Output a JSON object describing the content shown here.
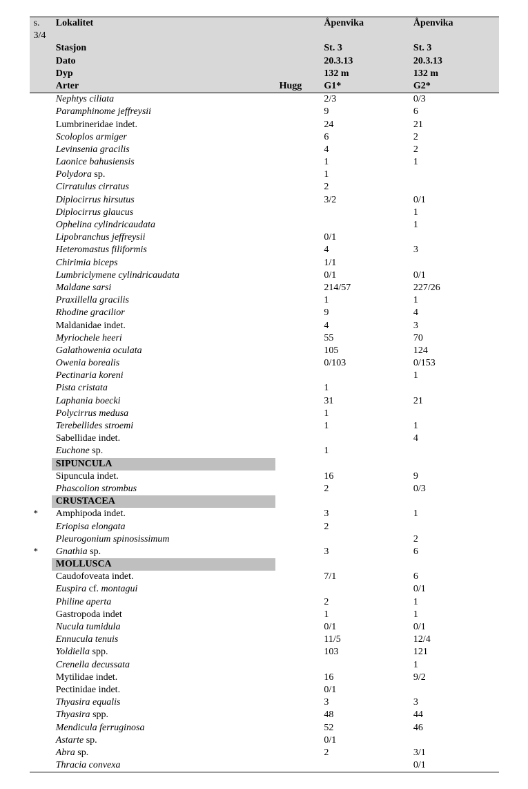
{
  "header": {
    "page_indicator": "s. 3/4",
    "labels": {
      "lokalitet": "Lokalitet",
      "stasjon": "Stasjon",
      "dato": "Dato",
      "dyp": "Dyp",
      "arter": "Arter",
      "hugg": "Hugg"
    },
    "cols": [
      {
        "lokalitet": "Åpenvika",
        "stasjon": "St. 3",
        "dato": "20.3.13",
        "dyp": "132 m",
        "hugg": "G1*"
      },
      {
        "lokalitet": "Åpenvika",
        "stasjon": "St. 3",
        "dato": "20.3.13",
        "dyp": "132 m",
        "hugg": "G2*"
      }
    ]
  },
  "rows": [
    {
      "mark": "",
      "type": "species",
      "name_italic": "Nephtys ciliata",
      "g1": "2/3",
      "g2": "0/3"
    },
    {
      "mark": "",
      "type": "species",
      "name_italic": "Paramphinome jeffreysii",
      "g1": "9",
      "g2": "6"
    },
    {
      "mark": "",
      "type": "species",
      "name_plain": "Lumbrineridae indet.",
      "g1": "24",
      "g2": "21"
    },
    {
      "mark": "",
      "type": "species",
      "name_italic": "Scoloplos armiger",
      "g1": "6",
      "g2": "2"
    },
    {
      "mark": "",
      "type": "species",
      "name_italic": "Levinsenia gracilis",
      "g1": "4",
      "g2": "2"
    },
    {
      "mark": "",
      "type": "species",
      "name_italic": "Laonice bahusiensis",
      "g1": "1",
      "g2": "1"
    },
    {
      "mark": "",
      "type": "species",
      "name_italic": "Polydora",
      "name_suffix": " sp.",
      "g1": "1",
      "g2": ""
    },
    {
      "mark": "",
      "type": "species",
      "name_italic": "Cirratulus cirratus",
      "g1": "2",
      "g2": ""
    },
    {
      "mark": "",
      "type": "species",
      "name_italic": "Diplocirrus hirsutus",
      "g1": "3/2",
      "g2": "0/1"
    },
    {
      "mark": "",
      "type": "species",
      "name_italic": "Diplocirrus glaucus",
      "g1": "",
      "g2": "1"
    },
    {
      "mark": "",
      "type": "species",
      "name_italic": "Ophelina cylindricaudata",
      "g1": "",
      "g2": "1"
    },
    {
      "mark": "",
      "type": "species",
      "name_italic": "Lipobranchus jeffreysii",
      "g1": "0/1",
      "g2": ""
    },
    {
      "mark": "",
      "type": "species",
      "name_italic": "Heteromastus filiformis",
      "g1": "4",
      "g2": "3"
    },
    {
      "mark": "",
      "type": "species",
      "name_italic": "Chirimia biceps",
      "g1": "1/1",
      "g2": ""
    },
    {
      "mark": "",
      "type": "species",
      "name_italic": "Lumbriclymene cylindricaudata",
      "g1": "0/1",
      "g2": "0/1"
    },
    {
      "mark": "",
      "type": "species",
      "name_italic": "Maldane sarsi",
      "g1": "214/57",
      "g2": "227/26"
    },
    {
      "mark": "",
      "type": "species",
      "name_italic": "Praxillella gracilis",
      "g1": "1",
      "g2": "1"
    },
    {
      "mark": "",
      "type": "species",
      "name_italic": "Rhodine gracilior",
      "g1": "9",
      "g2": "4"
    },
    {
      "mark": "",
      "type": "species",
      "name_plain": "Maldanidae indet.",
      "g1": "4",
      "g2": "3"
    },
    {
      "mark": "",
      "type": "species",
      "name_italic": "Myriochele heeri",
      "g1": "55",
      "g2": "70"
    },
    {
      "mark": "",
      "type": "species",
      "name_italic": "Galathowenia oculata",
      "g1": "105",
      "g2": "124"
    },
    {
      "mark": "",
      "type": "species",
      "name_italic": "Owenia borealis",
      "g1": "0/103",
      "g2": "0/153"
    },
    {
      "mark": "",
      "type": "species",
      "name_italic": "Pectinaria koreni",
      "g1": "",
      "g2": "1"
    },
    {
      "mark": "",
      "type": "species",
      "name_italic": "Pista cristata",
      "g1": "1",
      "g2": ""
    },
    {
      "mark": "",
      "type": "species",
      "name_italic": "Laphania boecki",
      "g1": "31",
      "g2": "21"
    },
    {
      "mark": "",
      "type": "species",
      "name_italic": "Polycirrus medusa",
      "g1": "1",
      "g2": ""
    },
    {
      "mark": "",
      "type": "species",
      "name_italic": "Terebellides stroemi",
      "g1": "1",
      "g2": "1"
    },
    {
      "mark": "",
      "type": "species",
      "name_plain": "Sabellidae indet.",
      "g1": "",
      "g2": "4"
    },
    {
      "mark": "",
      "type": "species",
      "name_italic": "Euchone",
      "name_suffix": " sp.",
      "g1": "1",
      "g2": ""
    },
    {
      "type": "section",
      "name_plain": "SIPUNCULA"
    },
    {
      "mark": "",
      "type": "species",
      "name_plain": "Sipuncula indet.",
      "g1": "16",
      "g2": "9"
    },
    {
      "mark": "",
      "type": "species",
      "name_italic": "Phascolion strombus",
      "g1": "2",
      "g2": "0/3"
    },
    {
      "type": "section",
      "name_plain": "CRUSTACEA"
    },
    {
      "mark": "*",
      "type": "species",
      "name_plain": "Amphipoda indet.",
      "g1": "3",
      "g2": "1"
    },
    {
      "mark": "",
      "type": "species",
      "name_italic": "Eriopisa elongata",
      "g1": "2",
      "g2": ""
    },
    {
      "mark": "",
      "type": "species",
      "name_italic": "Pleurogonium spinosissimum",
      "g1": "",
      "g2": "2"
    },
    {
      "mark": "*",
      "type": "species",
      "name_italic": "Gnathia",
      "name_suffix": " sp.",
      "g1": "3",
      "g2": "6"
    },
    {
      "type": "section",
      "name_plain": "MOLLUSCA"
    },
    {
      "mark": "",
      "type": "species",
      "name_plain": "Caudofoveata indet.",
      "g1": "7/1",
      "g2": "6"
    },
    {
      "mark": "",
      "type": "species",
      "name_italic": "Euspira",
      "name_suffix_italic_cf": " cf. ",
      "name_italic2": "montagui",
      "g1": "",
      "g2": "0/1"
    },
    {
      "mark": "",
      "type": "species",
      "name_italic": "Philine aperta",
      "g1": "2",
      "g2": "1"
    },
    {
      "mark": "",
      "type": "species",
      "name_plain": "Gastropoda indet",
      "g1": "1",
      "g2": "1"
    },
    {
      "mark": "",
      "type": "species",
      "name_italic": "Nucula tumidula",
      "g1": "0/1",
      "g2": "0/1"
    },
    {
      "mark": "",
      "type": "species",
      "name_italic": "Ennucula tenuis",
      "g1": "11/5",
      "g2": "12/4"
    },
    {
      "mark": "",
      "type": "species",
      "name_italic": "Yoldiella",
      "name_suffix": " spp.",
      "g1": "103",
      "g2": "121"
    },
    {
      "mark": "",
      "type": "species",
      "name_italic": "Crenella decussata",
      "g1": "",
      "g2": "1"
    },
    {
      "mark": "",
      "type": "species",
      "name_plain": "Mytilidae indet.",
      "g1": "16",
      "g2": "9/2"
    },
    {
      "mark": "",
      "type": "species",
      "name_plain": "Pectinidae indet.",
      "g1": "0/1",
      "g2": ""
    },
    {
      "mark": "",
      "type": "species",
      "name_italic": "Thyasira equalis",
      "g1": "3",
      "g2": "3"
    },
    {
      "mark": "",
      "type": "species",
      "name_italic": "Thyasira",
      "name_suffix": " spp.",
      "g1": "48",
      "g2": "44"
    },
    {
      "mark": "",
      "type": "species",
      "name_italic": "Mendicula ferruginosa",
      "g1": "52",
      "g2": "46"
    },
    {
      "mark": "",
      "type": "species",
      "name_italic": "Astarte",
      "name_suffix": " sp.",
      "g1": "0/1",
      "g2": ""
    },
    {
      "mark": "",
      "type": "species",
      "name_italic": "Abra",
      "name_suffix": " sp.",
      "g1": "2",
      "g2": "3/1"
    },
    {
      "mark": "",
      "type": "species",
      "name_italic": "Thracia convexa",
      "g1": "",
      "g2": "0/1"
    }
  ]
}
